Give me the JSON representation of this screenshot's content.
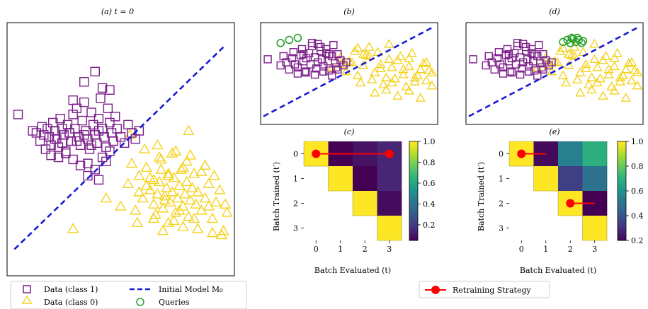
{
  "panel_titles": {
    "a": "(a) t = 0",
    "b": "(b)",
    "c": "(c)",
    "d": "(d)",
    "e": "(e)"
  },
  "legend_left": [
    {
      "label": "Data (class 1)",
      "marker": "square",
      "color": "#7b1f8a"
    },
    {
      "label": "Initial Model M₀",
      "marker": "dashed-line",
      "color": "#1a1ad6"
    },
    {
      "label": "Data (class 0)",
      "marker": "triangle",
      "color": "#f4d21f"
    },
    {
      "label": "Queries",
      "marker": "circle",
      "color": "#2ca02c"
    }
  ],
  "legend_right": [
    {
      "label": "Retraining Strategy",
      "marker": "line-dot",
      "color": "#ff0000"
    }
  ],
  "chart_data": [
    {
      "panel": "a",
      "type": "scatter",
      "title": "(a) t = 0",
      "xlim": [
        -3,
        3.2
      ],
      "ylim": [
        -3,
        3.2
      ],
      "series": [
        {
          "name": "Data (class 1)",
          "marker": "square",
          "color": "#7b1f8a",
          "x": [
            -2.7,
            -2.3,
            -2.2,
            -2.1,
            -2.05,
            -2.0,
            -1.95,
            -1.9,
            -1.85,
            -1.8,
            -1.75,
            -1.7,
            -1.65,
            -1.6,
            -1.55,
            -1.5,
            -1.45,
            -1.4,
            -1.35,
            -1.3,
            -1.25,
            -1.2,
            -1.15,
            -1.1,
            -1.05,
            -1.0,
            -0.95,
            -0.9,
            -0.85,
            -0.8,
            -0.75,
            -0.7,
            -0.65,
            -0.6,
            -0.55,
            -0.5,
            -0.45,
            -0.4,
            -0.35,
            -0.3,
            -0.25,
            -0.2,
            -0.15,
            -0.1,
            -0.05,
            0.0,
            0.1,
            0.2,
            0.3,
            0.4,
            0.5,
            0.6,
            -1.8,
            -1.6,
            -1.4,
            -1.2,
            -1.0,
            -0.8,
            -0.6,
            -0.4,
            -0.2,
            -1.5,
            -1.1,
            -0.7,
            -0.3,
            -1.3,
            -0.9,
            -0.5,
            -1.7,
            -0.6,
            -0.4,
            -0.9,
            -1.2,
            -0.2,
            -0.8,
            -0.5
          ],
          "y": [
            0.95,
            0.55,
            0.5,
            0.3,
            0.65,
            0.45,
            0.1,
            0.6,
            0.4,
            0.2,
            0.75,
            0.55,
            0.35,
            0.15,
            0.85,
            0.6,
            0.45,
            0.0,
            0.7,
            0.5,
            0.3,
            0.95,
            0.6,
            1.1,
            0.4,
            0.2,
            0.8,
            1.25,
            0.55,
            0.35,
            0.1,
            1.0,
            0.7,
            0.45,
            0.25,
            0.85,
            1.35,
            0.6,
            0.4,
            0.15,
            1.1,
            0.75,
            0.5,
            0.3,
            0.9,
            0.6,
            0.4,
            0.25,
            0.7,
            0.5,
            0.35,
            0.55,
            -0.05,
            -0.1,
            0.05,
            -0.15,
            -0.3,
            -0.25,
            -0.4,
            -0.1,
            0.05,
            0.25,
            0.3,
            0.2,
            -0.2,
            0.5,
            0.45,
            0.55,
            0.35,
            2.0,
            1.6,
            1.75,
            1.3,
            1.55,
            -0.55,
            -0.65
          ]
        },
        {
          "name": "Data (class 0)",
          "marker": "triangle",
          "color": "#f4d21f",
          "x": [
            -1.2,
            -0.3,
            0.1,
            0.3,
            0.5,
            0.6,
            0.7,
            0.8,
            0.9,
            1.0,
            1.05,
            1.1,
            1.15,
            1.2,
            1.25,
            1.3,
            1.35,
            1.4,
            1.45,
            1.5,
            1.55,
            1.6,
            1.65,
            1.7,
            1.75,
            1.8,
            1.85,
            1.9,
            1.95,
            2.0,
            2.05,
            2.1,
            2.15,
            2.2,
            2.3,
            2.4,
            2.5,
            2.6,
            2.7,
            2.8,
            2.9,
            3.0,
            0.4,
            0.8,
            1.2,
            1.6,
            2.0,
            2.4,
            1.0,
            1.4,
            1.8,
            2.2,
            2.6,
            0.9,
            1.3,
            1.7,
            2.1,
            2.5,
            1.1,
            1.5,
            1.9,
            2.3,
            0.6,
            1.0,
            1.4,
            1.8,
            0.55,
            1.25,
            1.55,
            2.65,
            2.95,
            1.15,
            0.75,
            0.35,
            2.85,
            1.95
          ],
          "y": [
            -1.85,
            -1.1,
            -1.3,
            -0.75,
            -1.4,
            -0.95,
            -1.1,
            -0.8,
            -0.6,
            -1.25,
            -1.5,
            -1.0,
            -0.7,
            -0.4,
            -1.35,
            -1.05,
            -0.85,
            -0.55,
            -1.2,
            -0.95,
            -0.6,
            -1.45,
            -1.1,
            -0.8,
            -0.4,
            -1.3,
            -1.0,
            -0.7,
            -1.55,
            -1.15,
            -0.85,
            -0.5,
            -1.25,
            -0.95,
            -1.4,
            -1.1,
            -0.75,
            -1.6,
            -1.2,
            -0.9,
            -1.9,
            -1.45,
            -0.25,
            -0.35,
            -0.15,
            0.05,
            -0.05,
            -0.3,
            -1.6,
            -1.7,
            -1.8,
            -1.85,
            -1.95,
            -0.9,
            -1.15,
            -1.4,
            -1.6,
            -1.3,
            0.2,
            0.0,
            -0.2,
            -0.45,
            -0.55,
            -0.65,
            -0.5,
            -0.35,
            -1.7,
            -1.9,
            -1.65,
            -0.55,
            -1.25,
            -0.1,
            0.1,
            0.45,
            -2.0,
            0.55
          ]
        },
        {
          "name": "Initial Model M₀",
          "type": "line",
          "style": "dashed",
          "color": "#1a1ad6",
          "x": [
            -2.8,
            2.9
          ],
          "y": [
            -2.35,
            2.6
          ]
        }
      ]
    },
    {
      "panel": "b",
      "type": "scatter",
      "title": "(b)",
      "xlim": [
        -3,
        3.2
      ],
      "ylim": [
        -2.5,
        2.5
      ],
      "series": [
        {
          "name": "Data (class 1)",
          "marker": "square",
          "x": [
            -2.75,
            -2.3,
            -2.2,
            -2.1,
            -2.0,
            -1.9,
            -1.85,
            -1.8,
            -1.7,
            -1.6,
            -1.55,
            -1.5,
            -1.45,
            -1.4,
            -1.3,
            -1.25,
            -1.2,
            -1.1,
            -1.05,
            -1.0,
            -0.9,
            -0.85,
            -0.8,
            -0.7,
            -0.65,
            -0.6,
            -0.5,
            -0.45,
            -0.4,
            -0.35,
            -0.3,
            -0.2,
            -0.1,
            0.0,
            -1.7,
            -1.4,
            -1.1,
            -0.8,
            -0.5,
            -1.2,
            -0.9,
            -0.6,
            -0.3,
            -1.0,
            -0.7,
            -1.5
          ],
          "y": [
            0.7,
            0.4,
            0.85,
            0.55,
            0.2,
            0.75,
            1.05,
            0.45,
            0.3,
            0.9,
            1.2,
            0.6,
            0.1,
            0.75,
            1.0,
            0.45,
            1.35,
            0.8,
            0.25,
            0.55,
            1.1,
            0.7,
            0.35,
            1.0,
            0.6,
            0.15,
            0.85,
            1.4,
            0.5,
            0.3,
            0.95,
            0.65,
            0.4,
            0.55,
            0.0,
            0.05,
            -0.05,
            0.1,
            -0.1,
            1.5,
            1.3,
            0.95,
            0.2,
            1.45,
            1.2,
            0.95
          ]
        },
        {
          "name": "Data (class 0)",
          "marker": "triangle",
          "x": [
            -0.5,
            -0.2,
            0.0,
            0.2,
            0.4,
            0.6,
            0.8,
            1.0,
            1.2,
            1.4,
            1.6,
            1.8,
            2.0,
            2.2,
            2.4,
            2.6,
            2.8,
            3.0,
            0.3,
            0.7,
            1.1,
            1.5,
            1.9,
            2.3,
            2.7,
            0.5,
            0.9,
            1.3,
            1.7,
            2.1,
            2.5,
            2.9,
            1.0,
            1.4,
            1.8,
            2.2,
            2.6,
            0.1,
            0.6,
            1.2,
            -0.1,
            0.4,
            1.6,
            2.0,
            2.4,
            2.8,
            0.8,
            1.5,
            2.2,
            3.0
          ],
          "y": [
            0.3,
            0.8,
            0.1,
            0.55,
            -0.1,
            0.4,
            0.85,
            0.05,
            0.45,
            -0.2,
            0.3,
            0.65,
            -0.05,
            0.35,
            -0.4,
            0.2,
            0.55,
            -0.6,
            1.1,
            0.9,
            1.05,
            0.7,
            0.85,
            1.0,
            0.5,
            -0.45,
            -0.3,
            -0.55,
            -0.25,
            -0.65,
            -0.1,
            0.15,
            -0.95,
            -0.8,
            -1.1,
            -0.85,
            -1.2,
            0.6,
            0.95,
            0.25,
            0.45,
            1.25,
            -0.45,
            0.2,
            -0.2,
            -0.35,
            1.3,
            1.45,
            0.75,
            0.05
          ]
        },
        {
          "name": "Queries",
          "marker": "circle",
          "x": [
            -2.3,
            -2.0,
            -1.7
          ],
          "y": [
            1.5,
            1.65,
            1.75
          ]
        },
        {
          "name": "Initial Model M₀",
          "type": "line",
          "style": "dashed",
          "x": [
            -2.9,
            3.0
          ],
          "y": [
            -2.1,
            2.25
          ]
        }
      ]
    },
    {
      "panel": "d",
      "type": "scatter",
      "title": "(d)",
      "xlim": [
        -3,
        3.2
      ],
      "ylim": [
        -2.5,
        2.5
      ],
      "series": [
        {
          "name": "Data (class 1)",
          "marker": "square",
          "x": [
            -2.75,
            -2.3,
            -2.2,
            -2.1,
            -2.0,
            -1.9,
            -1.85,
            -1.8,
            -1.7,
            -1.6,
            -1.55,
            -1.5,
            -1.45,
            -1.4,
            -1.3,
            -1.25,
            -1.2,
            -1.1,
            -1.05,
            -1.0,
            -0.9,
            -0.85,
            -0.8,
            -0.7,
            -0.65,
            -0.6,
            -0.5,
            -0.45,
            -0.4,
            -0.35,
            -0.3,
            -0.2,
            -0.1,
            0.0,
            -1.7,
            -1.4,
            -1.1,
            -0.8,
            -0.5,
            -1.2,
            -0.9,
            -0.6,
            -0.3,
            -1.0,
            -0.7,
            -1.5
          ],
          "y": [
            0.7,
            0.4,
            0.85,
            0.55,
            0.2,
            0.75,
            1.05,
            0.45,
            0.3,
            0.9,
            1.2,
            0.6,
            0.1,
            0.75,
            1.0,
            0.45,
            1.35,
            0.8,
            0.25,
            0.55,
            1.1,
            0.7,
            0.35,
            1.0,
            0.6,
            0.15,
            0.85,
            1.4,
            0.5,
            0.3,
            0.95,
            0.65,
            0.4,
            0.55,
            0.0,
            0.05,
            -0.05,
            0.1,
            -0.1,
            1.5,
            1.3,
            0.95,
            0.2,
            1.45,
            1.2,
            0.95
          ]
        },
        {
          "name": "Data (class 0)",
          "marker": "triangle",
          "x": [
            -0.5,
            -0.2,
            0.0,
            0.2,
            0.4,
            0.6,
            0.8,
            1.0,
            1.2,
            1.4,
            1.6,
            1.8,
            2.0,
            2.2,
            2.4,
            2.6,
            2.8,
            3.0,
            0.3,
            0.7,
            1.1,
            1.5,
            1.9,
            2.3,
            2.7,
            0.5,
            0.9,
            1.3,
            1.7,
            2.1,
            2.5,
            2.9,
            1.0,
            1.4,
            1.8,
            2.2,
            2.6,
            0.1,
            0.6,
            1.2,
            -0.1,
            0.4,
            1.6,
            2.0,
            2.4,
            2.8,
            0.8,
            1.5,
            2.2,
            3.0
          ],
          "y": [
            0.3,
            0.8,
            0.1,
            0.55,
            -0.1,
            0.4,
            0.85,
            0.05,
            0.45,
            -0.2,
            0.3,
            0.65,
            -0.05,
            0.35,
            -0.4,
            0.2,
            0.55,
            -0.6,
            1.1,
            0.9,
            1.05,
            0.7,
            0.85,
            1.0,
            0.5,
            -0.45,
            -0.3,
            -0.55,
            -0.25,
            -0.65,
            -0.1,
            0.15,
            -0.95,
            -0.8,
            -1.1,
            -0.85,
            -1.2,
            0.6,
            0.95,
            0.25,
            0.45,
            1.25,
            -0.45,
            0.2,
            -0.2,
            -0.35,
            1.3,
            1.45,
            0.75,
            0.05
          ]
        },
        {
          "name": "Queries",
          "marker": "circle",
          "x": [
            0.4,
            0.55,
            0.65,
            0.75,
            0.85,
            0.95,
            1.05,
            1.1,
            0.7,
            0.9
          ],
          "y": [
            1.55,
            1.65,
            1.5,
            1.7,
            1.55,
            1.65,
            1.5,
            1.6,
            1.75,
            1.75
          ]
        },
        {
          "name": "Initial Model M₀",
          "type": "line",
          "style": "dashed",
          "x": [
            -2.9,
            3.0
          ],
          "y": [
            -2.1,
            2.25
          ]
        }
      ]
    },
    {
      "panel": "c",
      "type": "heatmap",
      "title": "(c)",
      "xlabel": "Batch Evaluated (t)",
      "ylabel": "Batch Trained (t′)",
      "x_ticks": [
        "0",
        "1",
        "2",
        "3"
      ],
      "y_ticks": [
        "0",
        "1",
        "2",
        "3"
      ],
      "matrix": [
        [
          1.0,
          0.05,
          0.1,
          0.15
        ],
        [
          null,
          1.0,
          0.05,
          0.15
        ],
        [
          null,
          null,
          1.0,
          0.08
        ],
        [
          null,
          null,
          null,
          1.0
        ]
      ],
      "colorbar": {
        "min": 0.05,
        "max": 1.0,
        "ticks": [
          "0.2",
          "0.4",
          "0.6",
          "0.8",
          "1.0"
        ],
        "tick_values": [
          0.2,
          0.4,
          0.6,
          0.8,
          1.0
        ]
      },
      "overlay": {
        "name": "Retraining Strategy",
        "color": "#ff0000",
        "points": [
          [
            0,
            0
          ],
          [
            3,
            0
          ]
        ]
      }
    },
    {
      "panel": "e",
      "type": "heatmap",
      "title": "(e)",
      "xlabel": "Batch Evaluated (t)",
      "ylabel": "Batch Trained (t′)",
      "x_ticks": [
        "0",
        "1",
        "2",
        "3"
      ],
      "y_ticks": [
        "0",
        "1",
        "2",
        "3"
      ],
      "matrix": [
        [
          1.0,
          0.22,
          0.55,
          0.7
        ],
        [
          null,
          1.0,
          0.35,
          0.5
        ],
        [
          null,
          null,
          1.0,
          0.2
        ],
        [
          null,
          null,
          null,
          1.0
        ]
      ],
      "colorbar": {
        "min": 0.2,
        "max": 1.0,
        "ticks": [
          "0.2",
          "0.4",
          "0.6",
          "0.8",
          "1.0"
        ],
        "tick_values": [
          0.2,
          0.4,
          0.6,
          0.8,
          1.0
        ]
      },
      "overlay": {
        "name": "Retraining Strategy",
        "color": "#ff0000",
        "segments": [
          [
            [
              0,
              0
            ],
            [
              1,
              0
            ]
          ],
          [
            [
              2,
              2
            ],
            [
              3,
              2
            ]
          ]
        ]
      }
    }
  ]
}
